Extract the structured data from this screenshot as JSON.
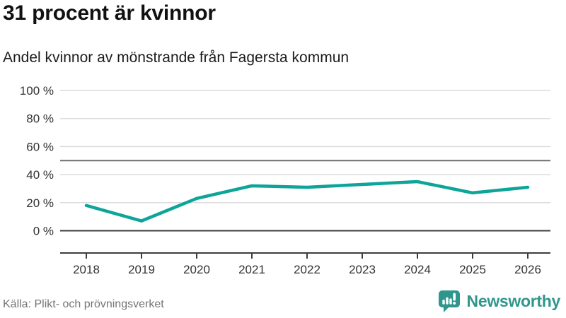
{
  "title": "31 procent är kvinnor",
  "subtitle": "Andel kvinnor av mönstrande från Fagersta kommun",
  "source": "Källa: Plikt- och prövningsverket",
  "brand": {
    "name": "Newsworthy",
    "icon": "bar-chart-speech-bubble-icon",
    "color": "#2f968c"
  },
  "colors": {
    "line": "#0da59a",
    "grid": "#dcdcdc",
    "ref_line": "#6e6e6e",
    "axis": "#3d3d3d",
    "label": "#333333",
    "title": "#111111",
    "source": "#757575"
  },
  "chart_data": {
    "type": "line",
    "title": "31 procent är kvinnor",
    "subtitle": "Andel kvinnor av mönstrande från Fagersta kommun",
    "x": [
      2018,
      2019,
      2020,
      2021,
      2022,
      2023,
      2024,
      2025,
      2026
    ],
    "series": [
      {
        "name": "Andel kvinnor av mönstrande",
        "color": "#0da59a",
        "values": [
          18,
          7,
          23,
          32,
          31,
          33,
          35,
          27,
          31
        ]
      }
    ],
    "xlabel": "",
    "ylabel": "",
    "ylim": [
      0,
      100
    ],
    "y_ticks": [
      0,
      20,
      40,
      60,
      80,
      100
    ],
    "y_tick_suffix": " %",
    "reference_line": 50,
    "grid": "horizontal",
    "legend": "none"
  }
}
